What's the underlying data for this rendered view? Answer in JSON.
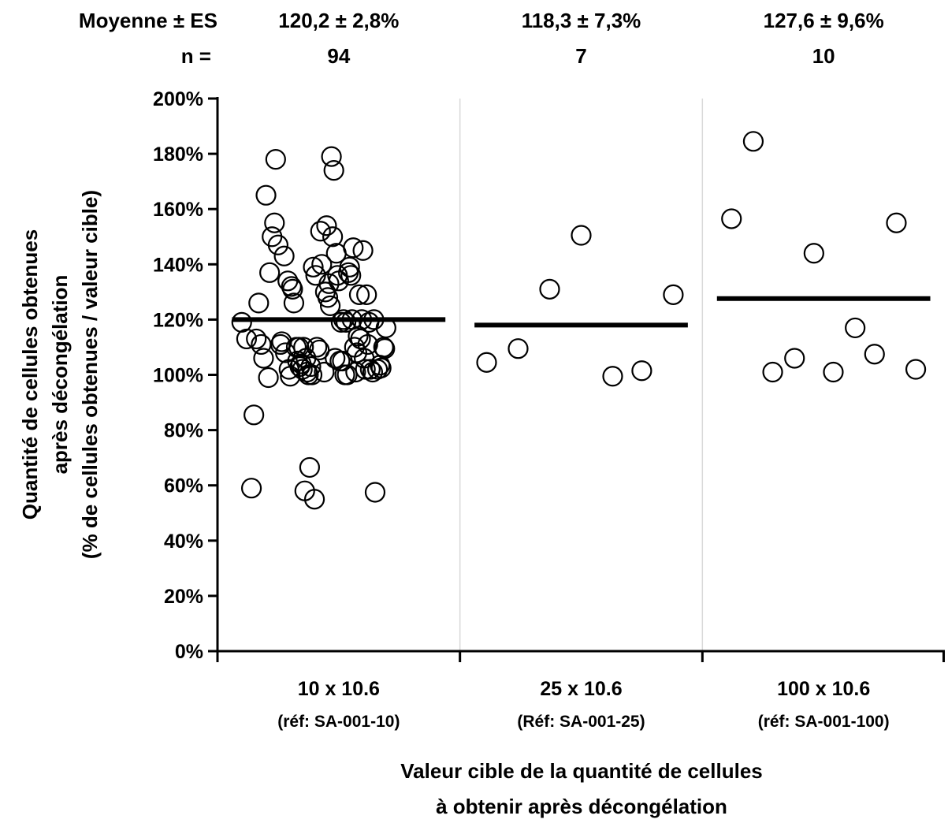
{
  "header": {
    "mean_label": "Moyenne ± ES",
    "n_label": "n ="
  },
  "chart_data": {
    "type": "scatter",
    "ylabel_lines": [
      "Quantité de cellules obtenues",
      "après décongélation",
      "(% de cellules obtenues / valeur cible)"
    ],
    "xlabel_lines": [
      "Valeur cible de la quantité de cellules",
      "à obtenir après décongélation"
    ],
    "ylim": [
      0,
      2.0
    ],
    "yticks": [
      {
        "value": 0.0,
        "label": "0%"
      },
      {
        "value": 0.2,
        "label": "20%"
      },
      {
        "value": 0.4,
        "label": "40%"
      },
      {
        "value": 0.6,
        "label": "60%"
      },
      {
        "value": 0.8,
        "label": "80%"
      },
      {
        "value": 1.0,
        "label": "100%"
      },
      {
        "value": 1.2,
        "label": "120%"
      },
      {
        "value": 1.4,
        "label": "140%"
      },
      {
        "value": 1.6,
        "label": "160%"
      },
      {
        "value": 1.8,
        "label": "180%"
      },
      {
        "value": 2.0,
        "label": "200%"
      }
    ],
    "grid": false,
    "groups": [
      {
        "category": "10 x 10.6",
        "ref": "(réf: SA-001-10)",
        "mean_se": "120,2 ± 2,8%",
        "n": "94",
        "mean": 1.2,
        "points": [
          {
            "x": 0.1,
            "y": 1.19
          },
          {
            "x": 0.12,
            "y": 1.13
          },
          {
            "x": 0.14,
            "y": 0.59
          },
          {
            "x": 0.15,
            "y": 0.855
          },
          {
            "x": 0.16,
            "y": 1.13
          },
          {
            "x": 0.17,
            "y": 1.26
          },
          {
            "x": 0.18,
            "y": 1.11
          },
          {
            "x": 0.19,
            "y": 1.06
          },
          {
            "x": 0.2,
            "y": 1.65
          },
          {
            "x": 0.21,
            "y": 0.99
          },
          {
            "x": 0.215,
            "y": 1.37
          },
          {
            "x": 0.225,
            "y": 1.5
          },
          {
            "x": 0.235,
            "y": 1.55
          },
          {
            "x": 0.24,
            "y": 1.78
          },
          {
            "x": 0.25,
            "y": 1.47
          },
          {
            "x": 0.26,
            "y": 1.11
          },
          {
            "x": 0.265,
            "y": 1.12
          },
          {
            "x": 0.275,
            "y": 1.43
          },
          {
            "x": 0.28,
            "y": 1.08
          },
          {
            "x": 0.29,
            "y": 1.34
          },
          {
            "x": 0.295,
            "y": 1.02
          },
          {
            "x": 0.3,
            "y": 0.995
          },
          {
            "x": 0.305,
            "y": 1.32
          },
          {
            "x": 0.31,
            "y": 1.31
          },
          {
            "x": 0.315,
            "y": 1.26
          },
          {
            "x": 0.325,
            "y": 1.1
          },
          {
            "x": 0.33,
            "y": 1.05
          },
          {
            "x": 0.335,
            "y": 1.1
          },
          {
            "x": 0.34,
            "y": 1.03
          },
          {
            "x": 0.345,
            "y": 1.04
          },
          {
            "x": 0.35,
            "y": 1.02
          },
          {
            "x": 0.355,
            "y": 1.1
          },
          {
            "x": 0.36,
            "y": 0.58
          },
          {
            "x": 0.365,
            "y": 1.06
          },
          {
            "x": 0.37,
            "y": 1.01
          },
          {
            "x": 0.375,
            "y": 1.0
          },
          {
            "x": 0.38,
            "y": 0.665
          },
          {
            "x": 0.385,
            "y": 1.03
          },
          {
            "x": 0.39,
            "y": 1.0
          },
          {
            "x": 0.395,
            "y": 1.39
          },
          {
            "x": 0.4,
            "y": 0.55
          },
          {
            "x": 0.405,
            "y": 1.36
          },
          {
            "x": 0.41,
            "y": 1.1
          },
          {
            "x": 0.42,
            "y": 1.09
          },
          {
            "x": 0.425,
            "y": 1.52
          },
          {
            "x": 0.43,
            "y": 1.4
          },
          {
            "x": 0.44,
            "y": 1.01
          },
          {
            "x": 0.445,
            "y": 1.3
          },
          {
            "x": 0.45,
            "y": 1.54
          },
          {
            "x": 0.455,
            "y": 1.28
          },
          {
            "x": 0.46,
            "y": 1.33
          },
          {
            "x": 0.465,
            "y": 1.25
          },
          {
            "x": 0.47,
            "y": 1.79
          },
          {
            "x": 0.475,
            "y": 1.5
          },
          {
            "x": 0.48,
            "y": 1.74
          },
          {
            "x": 0.485,
            "y": 1.06
          },
          {
            "x": 0.49,
            "y": 1.44
          },
          {
            "x": 0.495,
            "y": 1.36
          },
          {
            "x": 0.5,
            "y": 1.34
          },
          {
            "x": 0.505,
            "y": 1.05
          },
          {
            "x": 0.51,
            "y": 1.19
          },
          {
            "x": 0.515,
            "y": 1.05
          },
          {
            "x": 0.52,
            "y": 1.2
          },
          {
            "x": 0.525,
            "y": 1.0
          },
          {
            "x": 0.53,
            "y": 1.19
          },
          {
            "x": 0.535,
            "y": 1.0
          },
          {
            "x": 0.54,
            "y": 1.37
          },
          {
            "x": 0.545,
            "y": 1.39
          },
          {
            "x": 0.55,
            "y": 1.36
          },
          {
            "x": 0.555,
            "y": 1.2
          },
          {
            "x": 0.56,
            "y": 1.46
          },
          {
            "x": 0.565,
            "y": 1.1
          },
          {
            "x": 0.57,
            "y": 1.01
          },
          {
            "x": 0.575,
            "y": 1.08
          },
          {
            "x": 0.58,
            "y": 1.14
          },
          {
            "x": 0.585,
            "y": 1.29
          },
          {
            "x": 0.59,
            "y": 1.13
          },
          {
            "x": 0.595,
            "y": 1.2
          },
          {
            "x": 0.6,
            "y": 1.45
          },
          {
            "x": 0.605,
            "y": 1.06
          },
          {
            "x": 0.61,
            "y": 1.02
          },
          {
            "x": 0.615,
            "y": 1.29
          },
          {
            "x": 0.62,
            "y": 1.11
          },
          {
            "x": 0.625,
            "y": 1.19
          },
          {
            "x": 0.63,
            "y": 1.02
          },
          {
            "x": 0.64,
            "y": 1.01
          },
          {
            "x": 0.645,
            "y": 1.2
          },
          {
            "x": 0.65,
            "y": 0.575
          },
          {
            "x": 0.66,
            "y": 1.02
          },
          {
            "x": 0.67,
            "y": 1.035
          },
          {
            "x": 0.675,
            "y": 1.025
          },
          {
            "x": 0.685,
            "y": 1.1
          },
          {
            "x": 0.69,
            "y": 1.095
          },
          {
            "x": 0.695,
            "y": 1.17
          }
        ]
      },
      {
        "category": "25 x 10.6",
        "ref": "(Réf: SA-001-25)",
        "mean_se": "118,3 ± 7,3%",
        "n": "7",
        "mean": 1.18,
        "points": [
          {
            "x": 0.11,
            "y": 1.045
          },
          {
            "x": 0.24,
            "y": 1.095
          },
          {
            "x": 0.37,
            "y": 1.31
          },
          {
            "x": 0.5,
            "y": 1.505
          },
          {
            "x": 0.63,
            "y": 0.995
          },
          {
            "x": 0.75,
            "y": 1.015
          },
          {
            "x": 0.88,
            "y": 1.29
          }
        ]
      },
      {
        "category": "100 x 10.6",
        "ref": "(réf: SA-001-100)",
        "mean_se": "127,6 ± 9,6%",
        "n": "10",
        "mean": 1.276,
        "points": [
          {
            "x": 0.12,
            "y": 1.565
          },
          {
            "x": 0.21,
            "y": 1.845
          },
          {
            "x": 0.29,
            "y": 1.01
          },
          {
            "x": 0.38,
            "y": 1.06
          },
          {
            "x": 0.46,
            "y": 1.44
          },
          {
            "x": 0.54,
            "y": 1.01
          },
          {
            "x": 0.63,
            "y": 1.17
          },
          {
            "x": 0.71,
            "y": 1.075
          },
          {
            "x": 0.8,
            "y": 1.55
          },
          {
            "x": 0.88,
            "y": 1.02
          }
        ]
      }
    ]
  }
}
